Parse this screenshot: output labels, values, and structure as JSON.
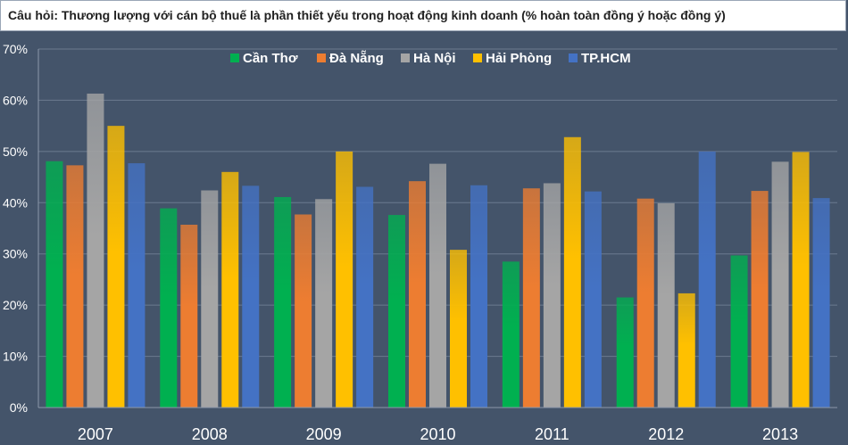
{
  "chart_data": {
    "type": "bar",
    "title": "Câu hỏi: Thương lượng với cán bộ thuế là phần thiết yếu trong hoạt động kinh doanh (% hoàn toàn đồng ý hoặc đồng ý)",
    "xlabel": "",
    "ylabel": "",
    "ylim": [
      0,
      70
    ],
    "yticks": [
      0,
      10,
      20,
      30,
      40,
      50,
      60,
      70
    ],
    "ytick_labels": [
      "0%",
      "10%",
      "20%",
      "30%",
      "40%",
      "50%",
      "60%",
      "70%"
    ],
    "grid": true,
    "legend_position": "top-center",
    "categories": [
      "2007",
      "2008",
      "2009",
      "2010",
      "2011",
      "2012",
      "2013"
    ],
    "series": [
      {
        "name": "Cần Thơ",
        "color": "#00b050",
        "values": [
          48.1,
          38.9,
          41.1,
          37.6,
          28.5,
          21.5,
          29.7
        ]
      },
      {
        "name": "Đà Nẵng",
        "color": "#ed7d31",
        "values": [
          47.3,
          35.7,
          37.7,
          44.2,
          42.8,
          40.8,
          42.3
        ]
      },
      {
        "name": "Hà Nội",
        "color": "#a5a5a5",
        "values": [
          61.3,
          42.4,
          40.7,
          47.6,
          43.8,
          39.9,
          48.0
        ]
      },
      {
        "name": "Hải Phòng",
        "color": "#ffc000",
        "values": [
          55.0,
          46.0,
          50.0,
          30.8,
          52.8,
          22.3,
          49.9
        ]
      },
      {
        "name": "TP.HCM",
        "color": "#4472c4",
        "values": [
          47.7,
          43.3,
          43.1,
          43.4,
          42.2,
          50.0,
          40.9
        ]
      }
    ]
  }
}
